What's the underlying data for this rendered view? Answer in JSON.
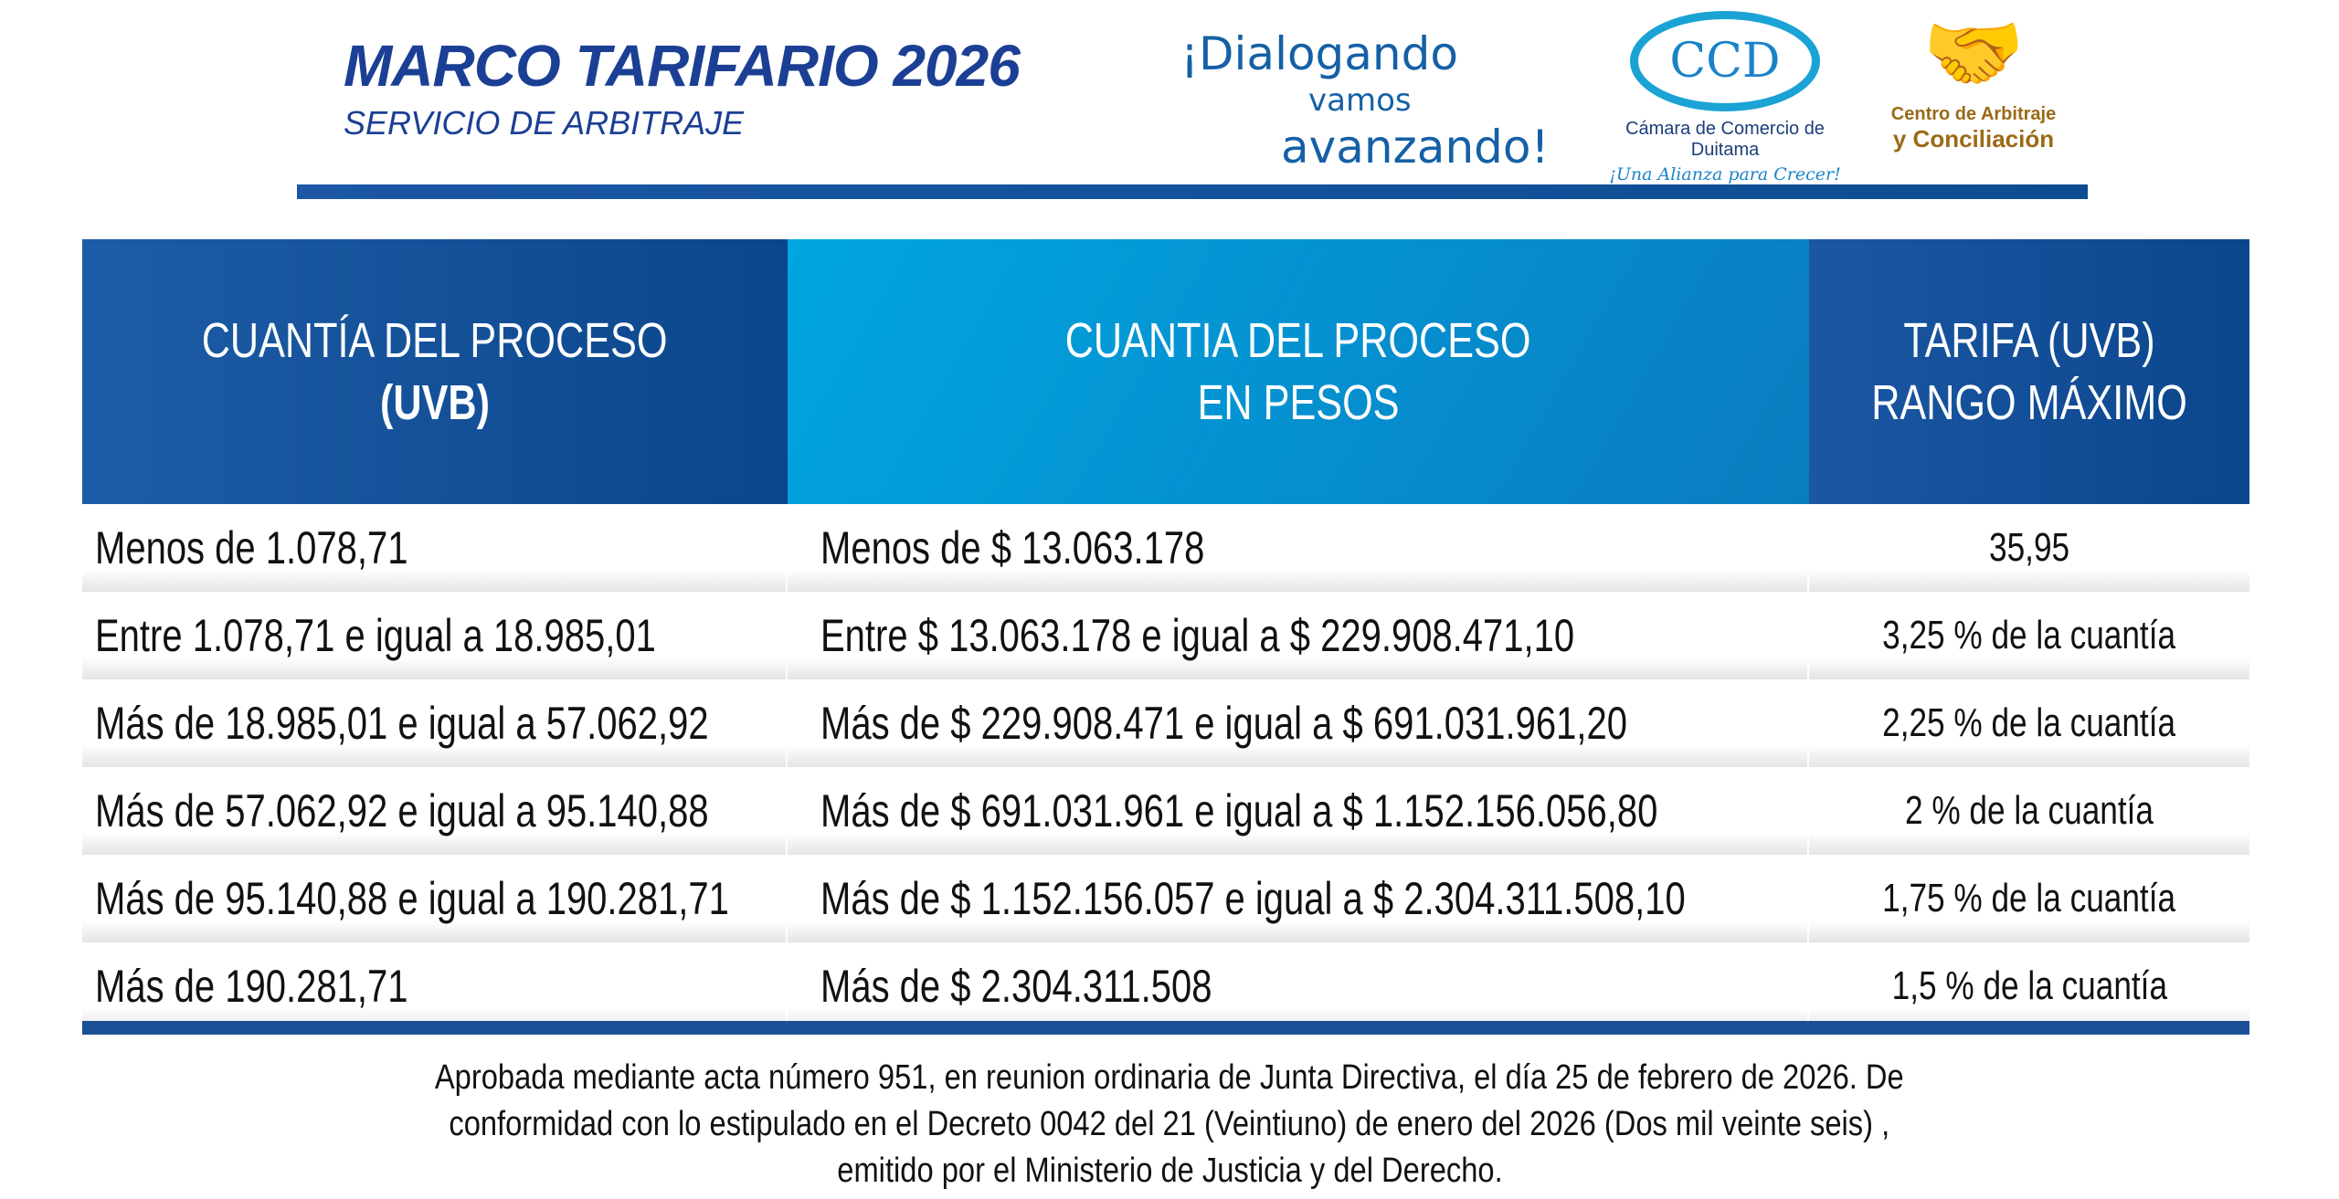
{
  "header": {
    "title": "MARCO TARIFARIO 2026",
    "subtitle": "SERVICIO DE ARBITRAJE",
    "slogan": [
      "¡Dialogando",
      "vamos",
      "avanzando!"
    ],
    "camara_logo": {
      "name": "Cámara de Comercio de Duitama",
      "tagline": "¡Una Alianza para Crecer!",
      "monogram": "CCD"
    },
    "centro_logo": {
      "line1": "Centro de Arbitraje",
      "line2": "y Conciliación"
    }
  },
  "table": {
    "headers": [
      [
        "CUANTÍA DEL PROCESO",
        "(UVB)"
      ],
      [
        "CUANTIA DEL PROCESO",
        "EN PESOS"
      ],
      [
        "TARIFA (UVB)",
        "RANGO MÁXIMO"
      ]
    ],
    "rows": [
      [
        "Menos de 1.078,71",
        "Menos de $ 13.063.178",
        "35,95"
      ],
      [
        "Entre 1.078,71 e igual a 18.985,01",
        "Entre $ 13.063.178 e igual a $ 229.908.471,10",
        "3,25 % de la cuantía"
      ],
      [
        "Más de 18.985,01 e igual a 57.062,92",
        "Más de $ 229.908.471 e igual a $ 691.031.961,20",
        "2,25 % de la cuantía"
      ],
      [
        "Más de 57.062,92 e igual a 95.140,88",
        "Más de $ 691.031.961 e igual a $ 1.152.156.056,80",
        "2 % de la cuantía"
      ],
      [
        "Más de 95.140,88 e igual a 190.281,71",
        "Más de $ 1.152.156.057 e igual a $ 2.304.311.508,10",
        "1,75 % de la cuantía"
      ],
      [
        "Más de 190.281,71",
        "Más de $ 2.304.311.508",
        "1,5 % de la cuantía"
      ]
    ]
  },
  "footer": {
    "lines": [
      "Aprobada mediante acta número 951, en reunion ordinaria de Junta Directiva, el día 25 de febrero de 2026. De",
      "conformidad con lo estipulado en el Decreto 0042 del 21 (Veintiuno) de enero del 2026 (Dos mil veinte seis) ,",
      "emitido por el Ministerio de Justicia y del Derecho."
    ]
  },
  "colors": {
    "title": "#1b3f94",
    "header_dark": "#0b468c",
    "header_light": "#00a6e0",
    "centro": "#9b6a16"
  }
}
